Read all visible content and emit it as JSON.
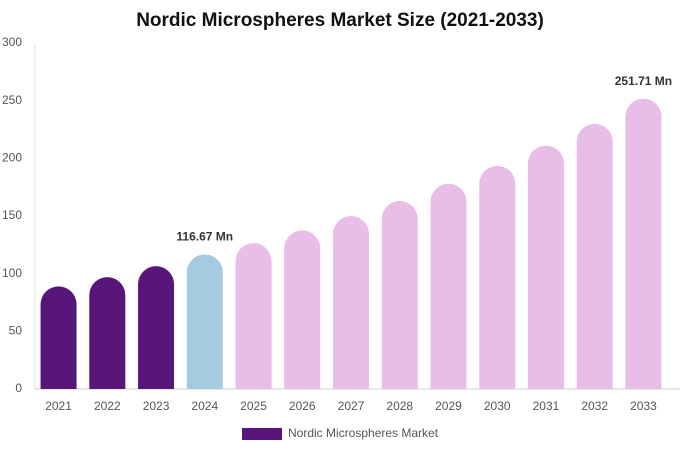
{
  "chart_data": {
    "type": "bar",
    "title": "Nordic Microspheres Market Size (2021-2033)",
    "categories": [
      "2021",
      "2022",
      "2023",
      "2024",
      "2025",
      "2026",
      "2027",
      "2028",
      "2029",
      "2030",
      "2031",
      "2032",
      "2033"
    ],
    "series": [
      {
        "name": "Nordic Microspheres Market",
        "color": "#58157a",
        "values": [
          89,
          97,
          106.5,
          116.67,
          126.5,
          137.5,
          150,
          163,
          178,
          193.5,
          211,
          230,
          251.71
        ],
        "value_labels": [
          null,
          null,
          null,
          "116.67 Mn",
          null,
          null,
          null,
          null,
          null,
          null,
          null,
          null,
          "251.71 Mn"
        ],
        "colors": [
          "#58157a",
          "#58157a",
          "#58157a",
          "#a4cbe0",
          "#e8bde8",
          "#e8bde8",
          "#e8bde8",
          "#e8bde8",
          "#e8bde8",
          "#e8bde8",
          "#e8bde8",
          "#e8bde8",
          "#e8bde8"
        ]
      }
    ],
    "ylim": [
      0,
      300
    ],
    "yticks": [
      0,
      50,
      100,
      150,
      200,
      250,
      300
    ],
    "grid": false
  }
}
